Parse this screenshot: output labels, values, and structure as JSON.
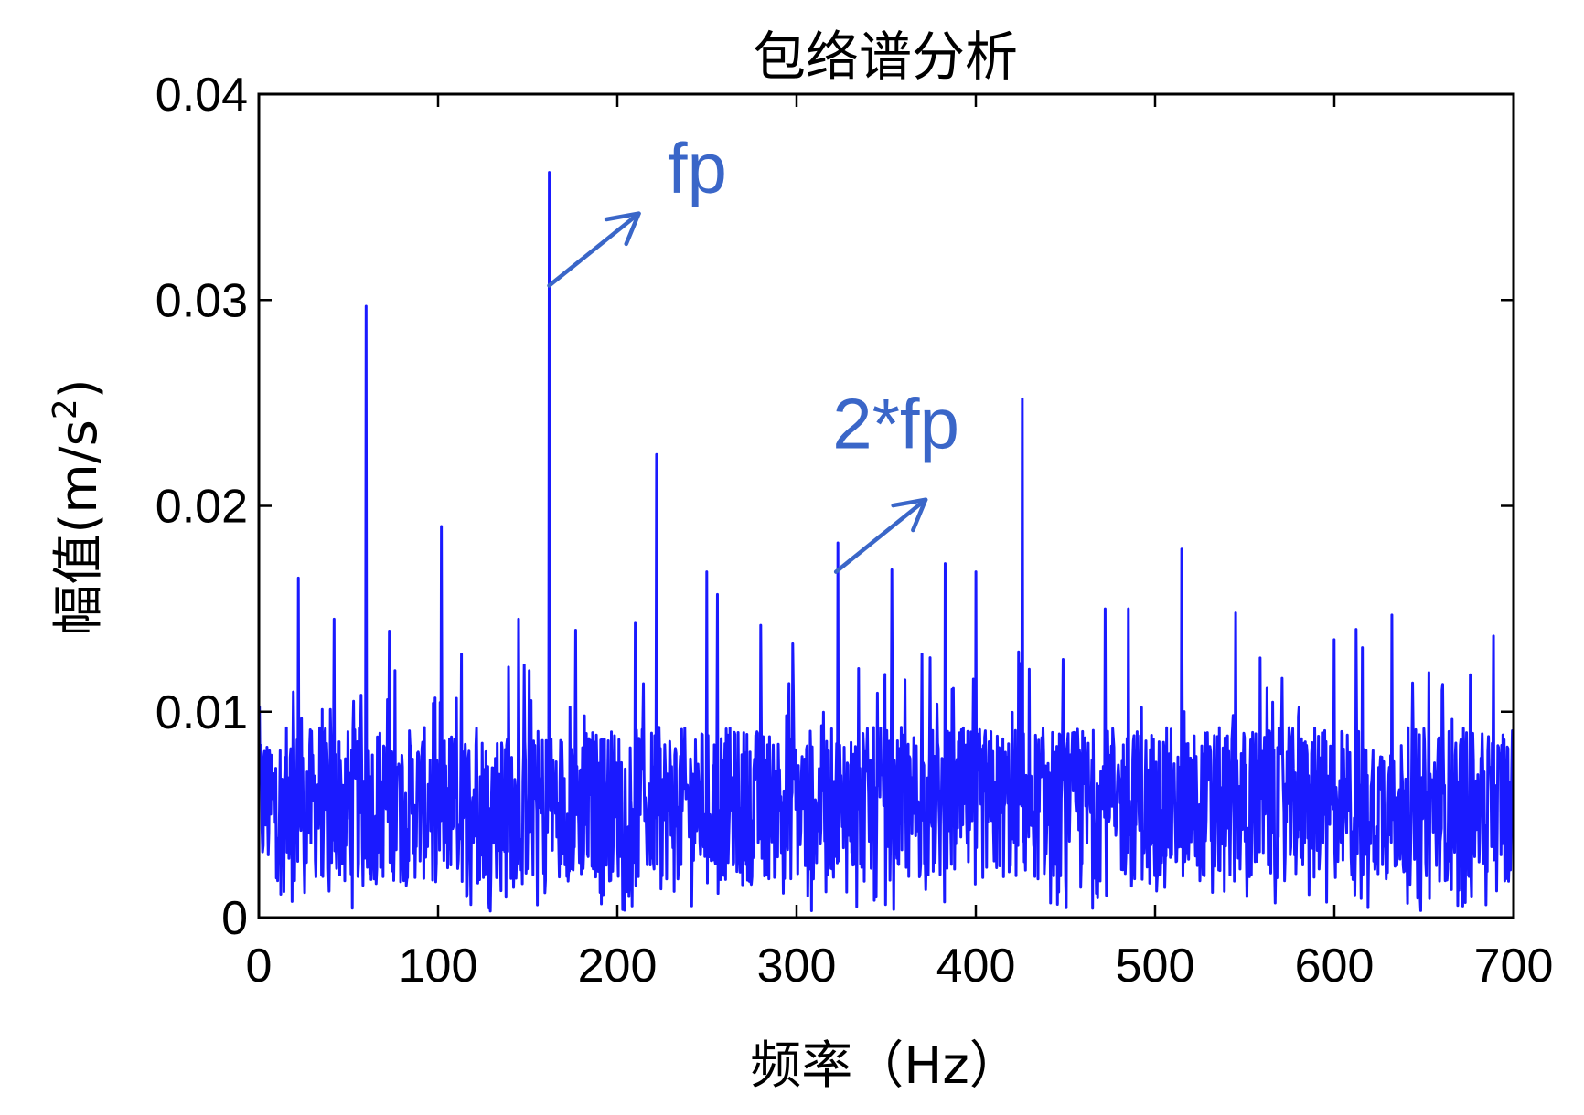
{
  "chart_data": {
    "type": "line",
    "title": "包络谱分析",
    "xlabel": "频率（Hz）",
    "ylabel": {
      "text": "幅值(m/s",
      "sup": "2",
      "close": ")"
    },
    "xlim": [
      0,
      700
    ],
    "ylim": [
      0,
      0.04
    ],
    "xticks": [
      0,
      100,
      200,
      300,
      400,
      500,
      600,
      700
    ],
    "xtick_labels": [
      "0",
      "100",
      "200",
      "300",
      "400",
      "500",
      "600",
      "700"
    ],
    "yticks": [
      0,
      0.01,
      0.02,
      0.03,
      0.04
    ],
    "ytick_labels": [
      "0",
      "0.01",
      "0.02",
      "0.03",
      "0.04"
    ],
    "grid": false,
    "series_color": "#1a1aff",
    "annotation_color": "#3a66c8",
    "peaks": [
      {
        "x": 22,
        "y": 0.0165
      },
      {
        "x": 42,
        "y": 0.0145
      },
      {
        "x": 60,
        "y": 0.0297
      },
      {
        "x": 76,
        "y": 0.012
      },
      {
        "x": 102,
        "y": 0.019
      },
      {
        "x": 113,
        "y": 0.0128
      },
      {
        "x": 145,
        "y": 0.0145
      },
      {
        "x": 162,
        "y": 0.0362
      },
      {
        "x": 210,
        "y": 0.0143
      },
      {
        "x": 222,
        "y": 0.0225
      },
      {
        "x": 250,
        "y": 0.0168
      },
      {
        "x": 256,
        "y": 0.0157
      },
      {
        "x": 280,
        "y": 0.0142
      },
      {
        "x": 298,
        "y": 0.0133
      },
      {
        "x": 323,
        "y": 0.0182
      },
      {
        "x": 353,
        "y": 0.0169
      },
      {
        "x": 370,
        "y": 0.0128
      },
      {
        "x": 383,
        "y": 0.0172
      },
      {
        "x": 400,
        "y": 0.0168
      },
      {
        "x": 426,
        "y": 0.0252
      },
      {
        "x": 472,
        "y": 0.015
      },
      {
        "x": 485,
        "y": 0.015
      },
      {
        "x": 515,
        "y": 0.0179
      },
      {
        "x": 545,
        "y": 0.0148
      },
      {
        "x": 600,
        "y": 0.0135
      },
      {
        "x": 612,
        "y": 0.014
      },
      {
        "x": 632,
        "y": 0.0147
      },
      {
        "x": 676,
        "y": 0.0118
      }
    ],
    "annotations": [
      {
        "label": "fp",
        "from": [
          162,
          0.0307
        ],
        "to": [
          212,
          0.0342
        ],
        "text_at": [
          228,
          0.0352
        ]
      },
      {
        "label": "2*fp",
        "from": [
          322,
          0.0168
        ],
        "to": [
          372,
          0.0203
        ],
        "text_at": [
          320,
          0.0228
        ]
      }
    ]
  }
}
